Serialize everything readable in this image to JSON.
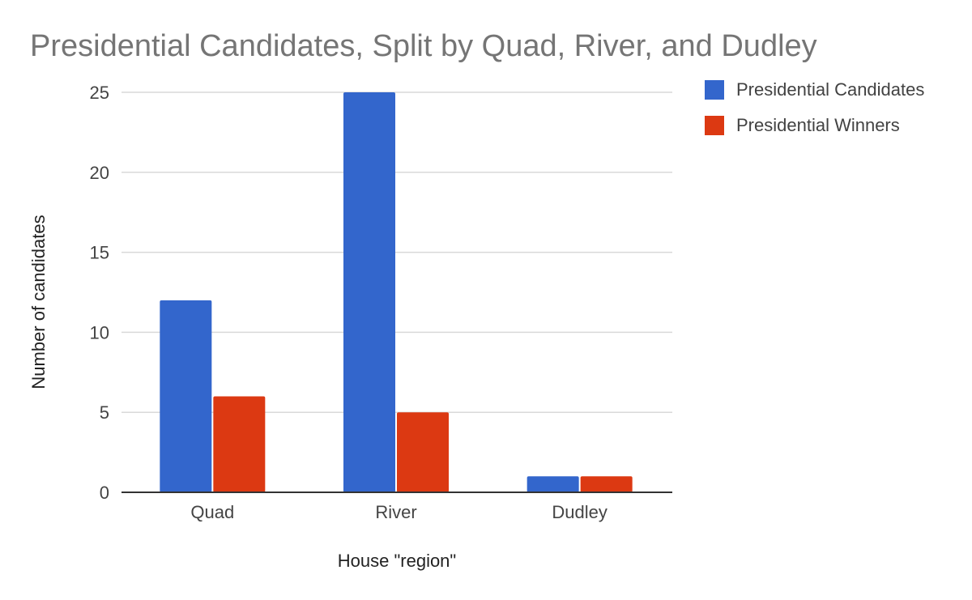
{
  "chart_data": {
    "type": "bar",
    "title": "Presidential Candidates, Split by Quad, River, and Dudley",
    "xlabel": "House \"region\"",
    "ylabel": "Number of candidates",
    "categories": [
      "Quad",
      "River",
      "Dudley"
    ],
    "series": [
      {
        "name": "Presidential Candidates",
        "values": [
          12,
          25,
          1
        ],
        "color": "#3366cc"
      },
      {
        "name": "Presidential Winners",
        "values": [
          6,
          5,
          1
        ],
        "color": "#dc3912"
      }
    ],
    "ylim": [
      0,
      25
    ],
    "yticks": [
      0,
      5,
      10,
      15,
      20,
      25
    ],
    "grid": true,
    "legend_position": "right"
  }
}
